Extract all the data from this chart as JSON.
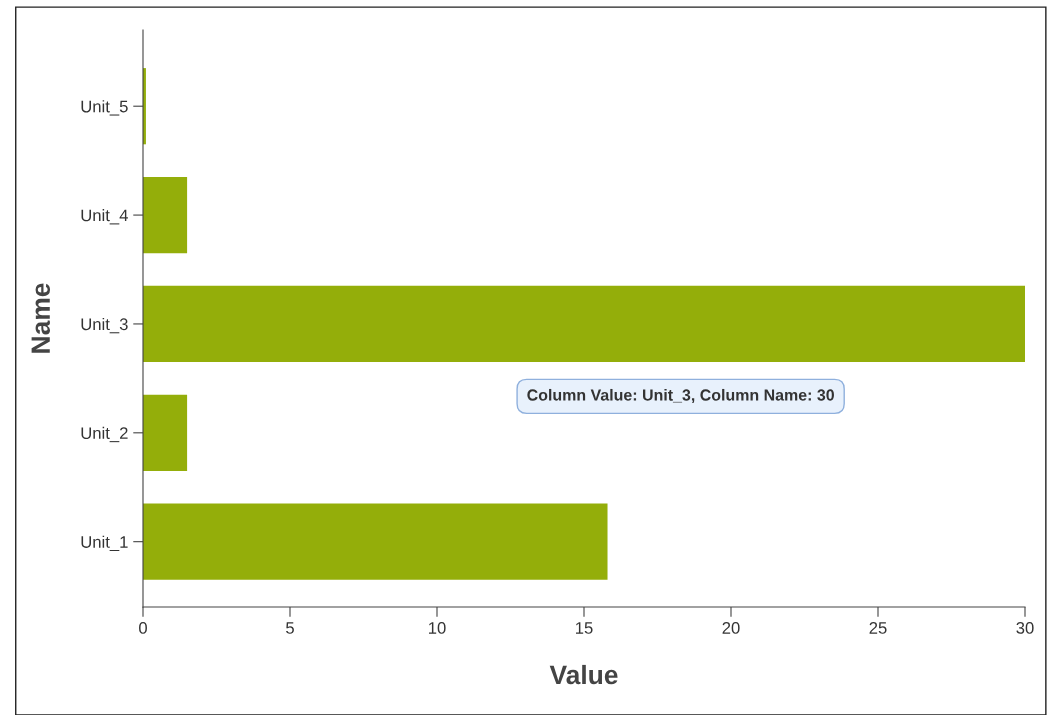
{
  "chart_data": {
    "type": "bar",
    "orientation": "horizontal",
    "xlabel": "Value",
    "ylabel": "Name",
    "categories": [
      "Unit_5",
      "Unit_4",
      "Unit_3",
      "Unit_2",
      "Unit_1"
    ],
    "values": [
      0.1,
      1.5,
      30,
      1.5,
      15.8
    ],
    "color": "#94ae0a",
    "xlim": [
      0,
      30
    ],
    "xticks": [
      0,
      5,
      10,
      15,
      20,
      25,
      30
    ],
    "grid": false,
    "annotations": [
      "Column Value: Unit_3, Column Name: 30"
    ]
  }
}
